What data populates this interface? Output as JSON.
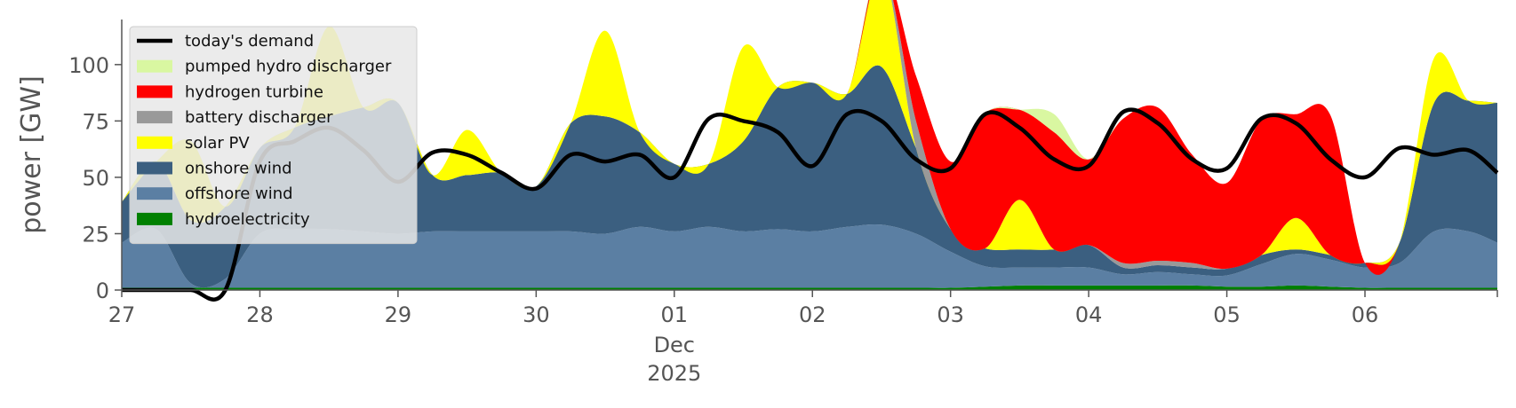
{
  "chart_data": {
    "type": "area",
    "ylabel": "power [GW]",
    "xlabel": "",
    "ylim": [
      0,
      120
    ],
    "xlim": [
      "2025-11-27T00:00",
      "2025-12-06T23:00"
    ],
    "yticks": [
      0,
      25,
      50,
      75,
      100
    ],
    "xticks": [
      {
        "date": "2025-11-27",
        "label": "27"
      },
      {
        "date": "2025-11-28",
        "label": "28"
      },
      {
        "date": "2025-11-29",
        "label": "29"
      },
      {
        "date": "2025-11-30",
        "label": "30"
      },
      {
        "date": "2025-12-01",
        "label": "01",
        "sublabels": [
          "Dec",
          "2025"
        ]
      },
      {
        "date": "2025-12-02",
        "label": "02"
      },
      {
        "date": "2025-12-03",
        "label": "03"
      },
      {
        "date": "2025-12-04",
        "label": "04"
      },
      {
        "date": "2025-12-05",
        "label": "05"
      },
      {
        "date": "2025-12-06",
        "label": "06"
      }
    ],
    "grid": false,
    "legend_position": "top-left",
    "x": [
      "2025-11-27T00:00",
      "2025-11-27T06:00",
      "2025-11-27T12:00",
      "2025-11-27T18:00",
      "2025-11-28T00:00",
      "2025-11-28T06:00",
      "2025-11-28T12:00",
      "2025-11-28T18:00",
      "2025-11-29T00:00",
      "2025-11-29T06:00",
      "2025-11-29T12:00",
      "2025-11-29T18:00",
      "2025-11-30T00:00",
      "2025-11-30T06:00",
      "2025-11-30T12:00",
      "2025-11-30T18:00",
      "2025-12-01T00:00",
      "2025-12-01T06:00",
      "2025-12-01T12:00",
      "2025-12-01T18:00",
      "2025-12-02T00:00",
      "2025-12-02T06:00",
      "2025-12-02T12:00",
      "2025-12-02T18:00",
      "2025-12-03T00:00",
      "2025-12-03T06:00",
      "2025-12-03T12:00",
      "2025-12-03T18:00",
      "2025-12-04T00:00",
      "2025-12-04T06:00",
      "2025-12-04T12:00",
      "2025-12-04T18:00",
      "2025-12-05T00:00",
      "2025-12-05T06:00",
      "2025-12-05T12:00",
      "2025-12-05T18:00",
      "2025-12-06T00:00",
      "2025-12-06T06:00",
      "2025-12-06T12:00",
      "2025-12-06T18:00",
      "2025-12-06T23:00"
    ],
    "series": [
      {
        "name": "hydroelectricity",
        "color": "#008000",
        "values": [
          1,
          1,
          1,
          1,
          1,
          1,
          1,
          1,
          1,
          1,
          1,
          1,
          1,
          1,
          1,
          1,
          1,
          1,
          1,
          1,
          1,
          1,
          1,
          1,
          1,
          1.5,
          2,
          2,
          2,
          2,
          2,
          2,
          1.5,
          1.5,
          2,
          1.5,
          1,
          1,
          1,
          1,
          1
        ]
      },
      {
        "name": "offshore wind",
        "color": "#5b7fa3",
        "values": [
          20,
          26,
          2,
          4,
          24,
          26,
          26,
          25,
          24,
          25,
          25,
          25,
          25,
          25,
          24,
          27,
          25,
          27,
          25,
          26,
          25,
          27,
          28,
          24,
          16,
          9,
          8,
          8,
          8,
          5,
          6,
          5,
          5,
          10,
          14,
          12,
          9,
          11,
          25,
          25,
          20
        ]
      },
      {
        "name": "onshore wind",
        "color": "#3b5f80",
        "values": [
          18,
          30,
          28,
          32,
          38,
          45,
          50,
          55,
          58,
          25,
          25,
          26,
          20,
          48,
          52,
          42,
          30,
          28,
          40,
          63,
          66,
          59,
          70,
          38,
          10,
          8,
          8,
          8,
          10,
          3,
          3,
          3,
          3,
          4,
          2,
          2,
          2,
          9,
          57,
          58,
          62
        ]
      },
      {
        "name": "solar PV",
        "color": "#ffff00",
        "values": [
          0,
          0,
          35,
          0,
          0,
          0,
          40,
          0,
          0,
          0,
          20,
          0,
          0,
          0,
          38,
          0,
          0,
          0,
          42,
          0,
          0,
          0,
          44,
          0,
          0,
          0,
          22,
          0,
          0,
          0,
          0,
          0,
          0,
          0,
          14,
          0,
          0,
          0,
          20,
          0,
          0
        ]
      },
      {
        "name": "battery discharger",
        "color": "#999999",
        "values": [
          0,
          0,
          0,
          0,
          0,
          0,
          0,
          0,
          0,
          0,
          0,
          0,
          0,
          0,
          0,
          0,
          0,
          0,
          0,
          0,
          0,
          0,
          0,
          12,
          0,
          0,
          0,
          0,
          0,
          2,
          2,
          2,
          0,
          0,
          0,
          0,
          0,
          0,
          0,
          0,
          0
        ]
      },
      {
        "name": "hydrogen turbine",
        "color": "#ff0000",
        "values": [
          0,
          0,
          0,
          0,
          0,
          0,
          0,
          0,
          0,
          0,
          0,
          0,
          0,
          0,
          0,
          0,
          0,
          0,
          0,
          0,
          0,
          0,
          0,
          20,
          30,
          60,
          40,
          52,
          38,
          64,
          68,
          48,
          38,
          60,
          46,
          62,
          0,
          0,
          0,
          0,
          0
        ]
      },
      {
        "name": "pumped hydro discharger",
        "color": "#d9f7a1",
        "values": [
          0,
          0,
          0,
          0,
          0,
          0,
          0,
          0,
          0,
          0,
          0,
          0,
          0,
          0,
          0,
          0,
          0,
          0,
          0,
          0,
          0,
          0,
          0,
          0,
          0,
          0,
          0,
          8,
          0,
          0,
          0,
          0,
          0,
          0,
          0,
          0,
          0,
          0,
          0,
          0,
          0
        ]
      }
    ],
    "line_series": {
      "name": "today's demand",
      "color": "#000000",
      "values": [
        0,
        0,
        0,
        0,
        57,
        66,
        72,
        62,
        48,
        61,
        60,
        52,
        45,
        60,
        57,
        60,
        50,
        76,
        75,
        70,
        55,
        78,
        75,
        58,
        54,
        78,
        72,
        58,
        55,
        79,
        74,
        58,
        54,
        76,
        74,
        58,
        50,
        63,
        60,
        62,
        52
      ]
    }
  }
}
